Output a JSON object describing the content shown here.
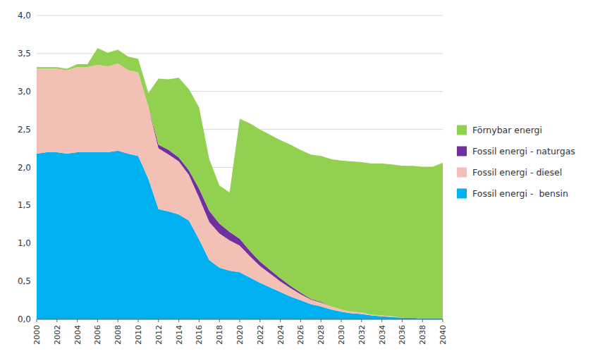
{
  "chart_data": {
    "type": "area",
    "stacked": true,
    "x": [
      2000,
      2001,
      2002,
      2003,
      2004,
      2005,
      2006,
      2007,
      2008,
      2009,
      2010,
      2011,
      2012,
      2013,
      2014,
      2015,
      2016,
      2017,
      2018,
      2019,
      2020,
      2021,
      2022,
      2023,
      2024,
      2025,
      2026,
      2027,
      2028,
      2029,
      2030,
      2031,
      2032,
      2033,
      2034,
      2035,
      2036,
      2037,
      2038,
      2039,
      2040
    ],
    "series": [
      {
        "name": "Fossil energi -  bensin",
        "color": "#00b0f0",
        "values": [
          2.18,
          2.2,
          2.2,
          2.18,
          2.2,
          2.2,
          2.2,
          2.2,
          2.22,
          2.18,
          2.15,
          1.85,
          1.45,
          1.42,
          1.38,
          1.3,
          1.05,
          0.78,
          0.68,
          0.64,
          0.62,
          0.55,
          0.48,
          0.42,
          0.36,
          0.3,
          0.25,
          0.2,
          0.17,
          0.13,
          0.1,
          0.08,
          0.07,
          0.05,
          0.04,
          0.03,
          0.02,
          0.02,
          0.01,
          0.01,
          0.01
        ]
      },
      {
        "name": "Fossil energi - diesel",
        "color": "#f2c0b4",
        "values": [
          1.12,
          1.1,
          1.1,
          1.1,
          1.12,
          1.12,
          1.15,
          1.13,
          1.15,
          1.1,
          1.1,
          0.95,
          0.8,
          0.75,
          0.7,
          0.6,
          0.55,
          0.5,
          0.45,
          0.4,
          0.35,
          0.28,
          0.22,
          0.18,
          0.14,
          0.11,
          0.08,
          0.06,
          0.05,
          0.04,
          0.03,
          0.02,
          0.02,
          0.01,
          0.01,
          0.01,
          0.0,
          0.0,
          0.0,
          0.0,
          0.0
        ]
      },
      {
        "name": "Fossil energi - naturgas",
        "color": "#7030a0",
        "values": [
          0.0,
          0.0,
          0.0,
          0.0,
          0.0,
          0.0,
          0.0,
          0.0,
          0.0,
          0.0,
          0.0,
          0.0,
          0.05,
          0.06,
          0.05,
          0.06,
          0.12,
          0.15,
          0.13,
          0.11,
          0.09,
          0.07,
          0.06,
          0.05,
          0.04,
          0.03,
          0.02,
          0.01,
          0.01,
          0.0,
          0.0,
          0.0,
          0.0,
          0.0,
          0.0,
          0.0,
          0.0,
          0.0,
          0.0,
          0.0,
          0.0
        ]
      },
      {
        "name": "Förnybar energi",
        "color": "#92d050",
        "values": [
          0.02,
          0.02,
          0.02,
          0.02,
          0.04,
          0.04,
          0.22,
          0.18,
          0.18,
          0.18,
          0.18,
          0.18,
          0.87,
          0.93,
          1.05,
          1.07,
          1.07,
          0.68,
          0.5,
          0.52,
          1.58,
          1.68,
          1.74,
          1.78,
          1.82,
          1.86,
          1.88,
          1.9,
          1.92,
          1.94,
          1.96,
          1.98,
          1.98,
          1.99,
          2.0,
          2.0,
          2.0,
          2.0,
          2.0,
          2.0,
          2.05
        ]
      }
    ],
    "xlim": [
      2000,
      2040
    ],
    "xticks": [
      2000,
      2002,
      2004,
      2006,
      2008,
      2010,
      2012,
      2014,
      2016,
      2018,
      2020,
      2022,
      2024,
      2026,
      2028,
      2030,
      2032,
      2034,
      2036,
      2038,
      2040
    ],
    "ylim": [
      0,
      4.0
    ],
    "yticks": [
      {
        "value": 0.0,
        "label": "0,0"
      },
      {
        "value": 0.5,
        "label": "0,5"
      },
      {
        "value": 1.0,
        "label": "1,0"
      },
      {
        "value": 1.5,
        "label": "1,5"
      },
      {
        "value": 2.0,
        "label": "2,0"
      },
      {
        "value": 2.5,
        "label": "2,5"
      },
      {
        "value": 3.0,
        "label": "3,0"
      },
      {
        "value": 3.5,
        "label": "3,5"
      },
      {
        "value": 4.0,
        "label": "4,0"
      }
    ],
    "grid": true,
    "legend": "right"
  }
}
